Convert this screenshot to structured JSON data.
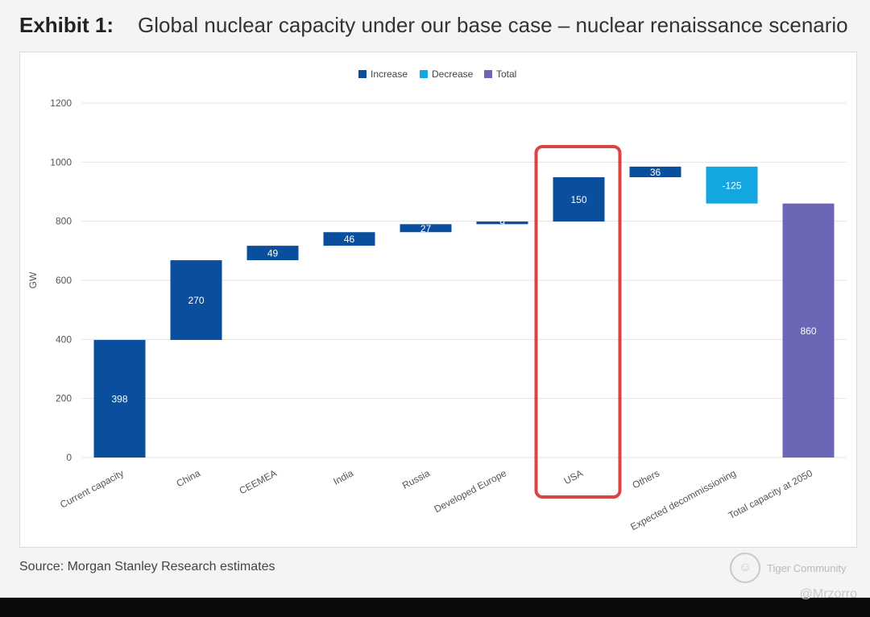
{
  "header": {
    "exhibit": "Exhibit 1:",
    "title": "Global nuclear capacity under our base case – nuclear renaissance scenario"
  },
  "source": "Source: Morgan Stanley Research estimates",
  "watermark": {
    "brand": "Tiger Community",
    "handle": "@Mrzorro"
  },
  "chart_data": {
    "type": "waterfall",
    "ylabel": "GW",
    "ylim": [
      0,
      1200
    ],
    "yticks": [
      0,
      200,
      400,
      600,
      800,
      1000,
      1200
    ],
    "legend": [
      {
        "label": "Increase",
        "color": "#0a4f9e"
      },
      {
        "label": "Decrease",
        "color": "#13a7e2"
      },
      {
        "label": "Total",
        "color": "#6b66b5"
      }
    ],
    "categories": [
      "Current capacity",
      "China",
      "CEEMEA",
      "India",
      "Russia",
      "Developed Europe",
      "USA",
      "Others",
      "Expected decommissioning",
      "Total capacity at 2050"
    ],
    "values": [
      398,
      270,
      49,
      46,
      27,
      9,
      150,
      36,
      -125,
      860
    ],
    "labels": [
      "398",
      "270",
      "49",
      "46",
      "27",
      "9",
      "150",
      "36",
      "-125",
      "860"
    ],
    "kinds": [
      "increase",
      "increase",
      "increase",
      "increase",
      "increase",
      "increase",
      "increase",
      "increase",
      "decrease",
      "total"
    ],
    "highlight": "USA",
    "highlight_color": "#d9453f",
    "grid": true
  }
}
